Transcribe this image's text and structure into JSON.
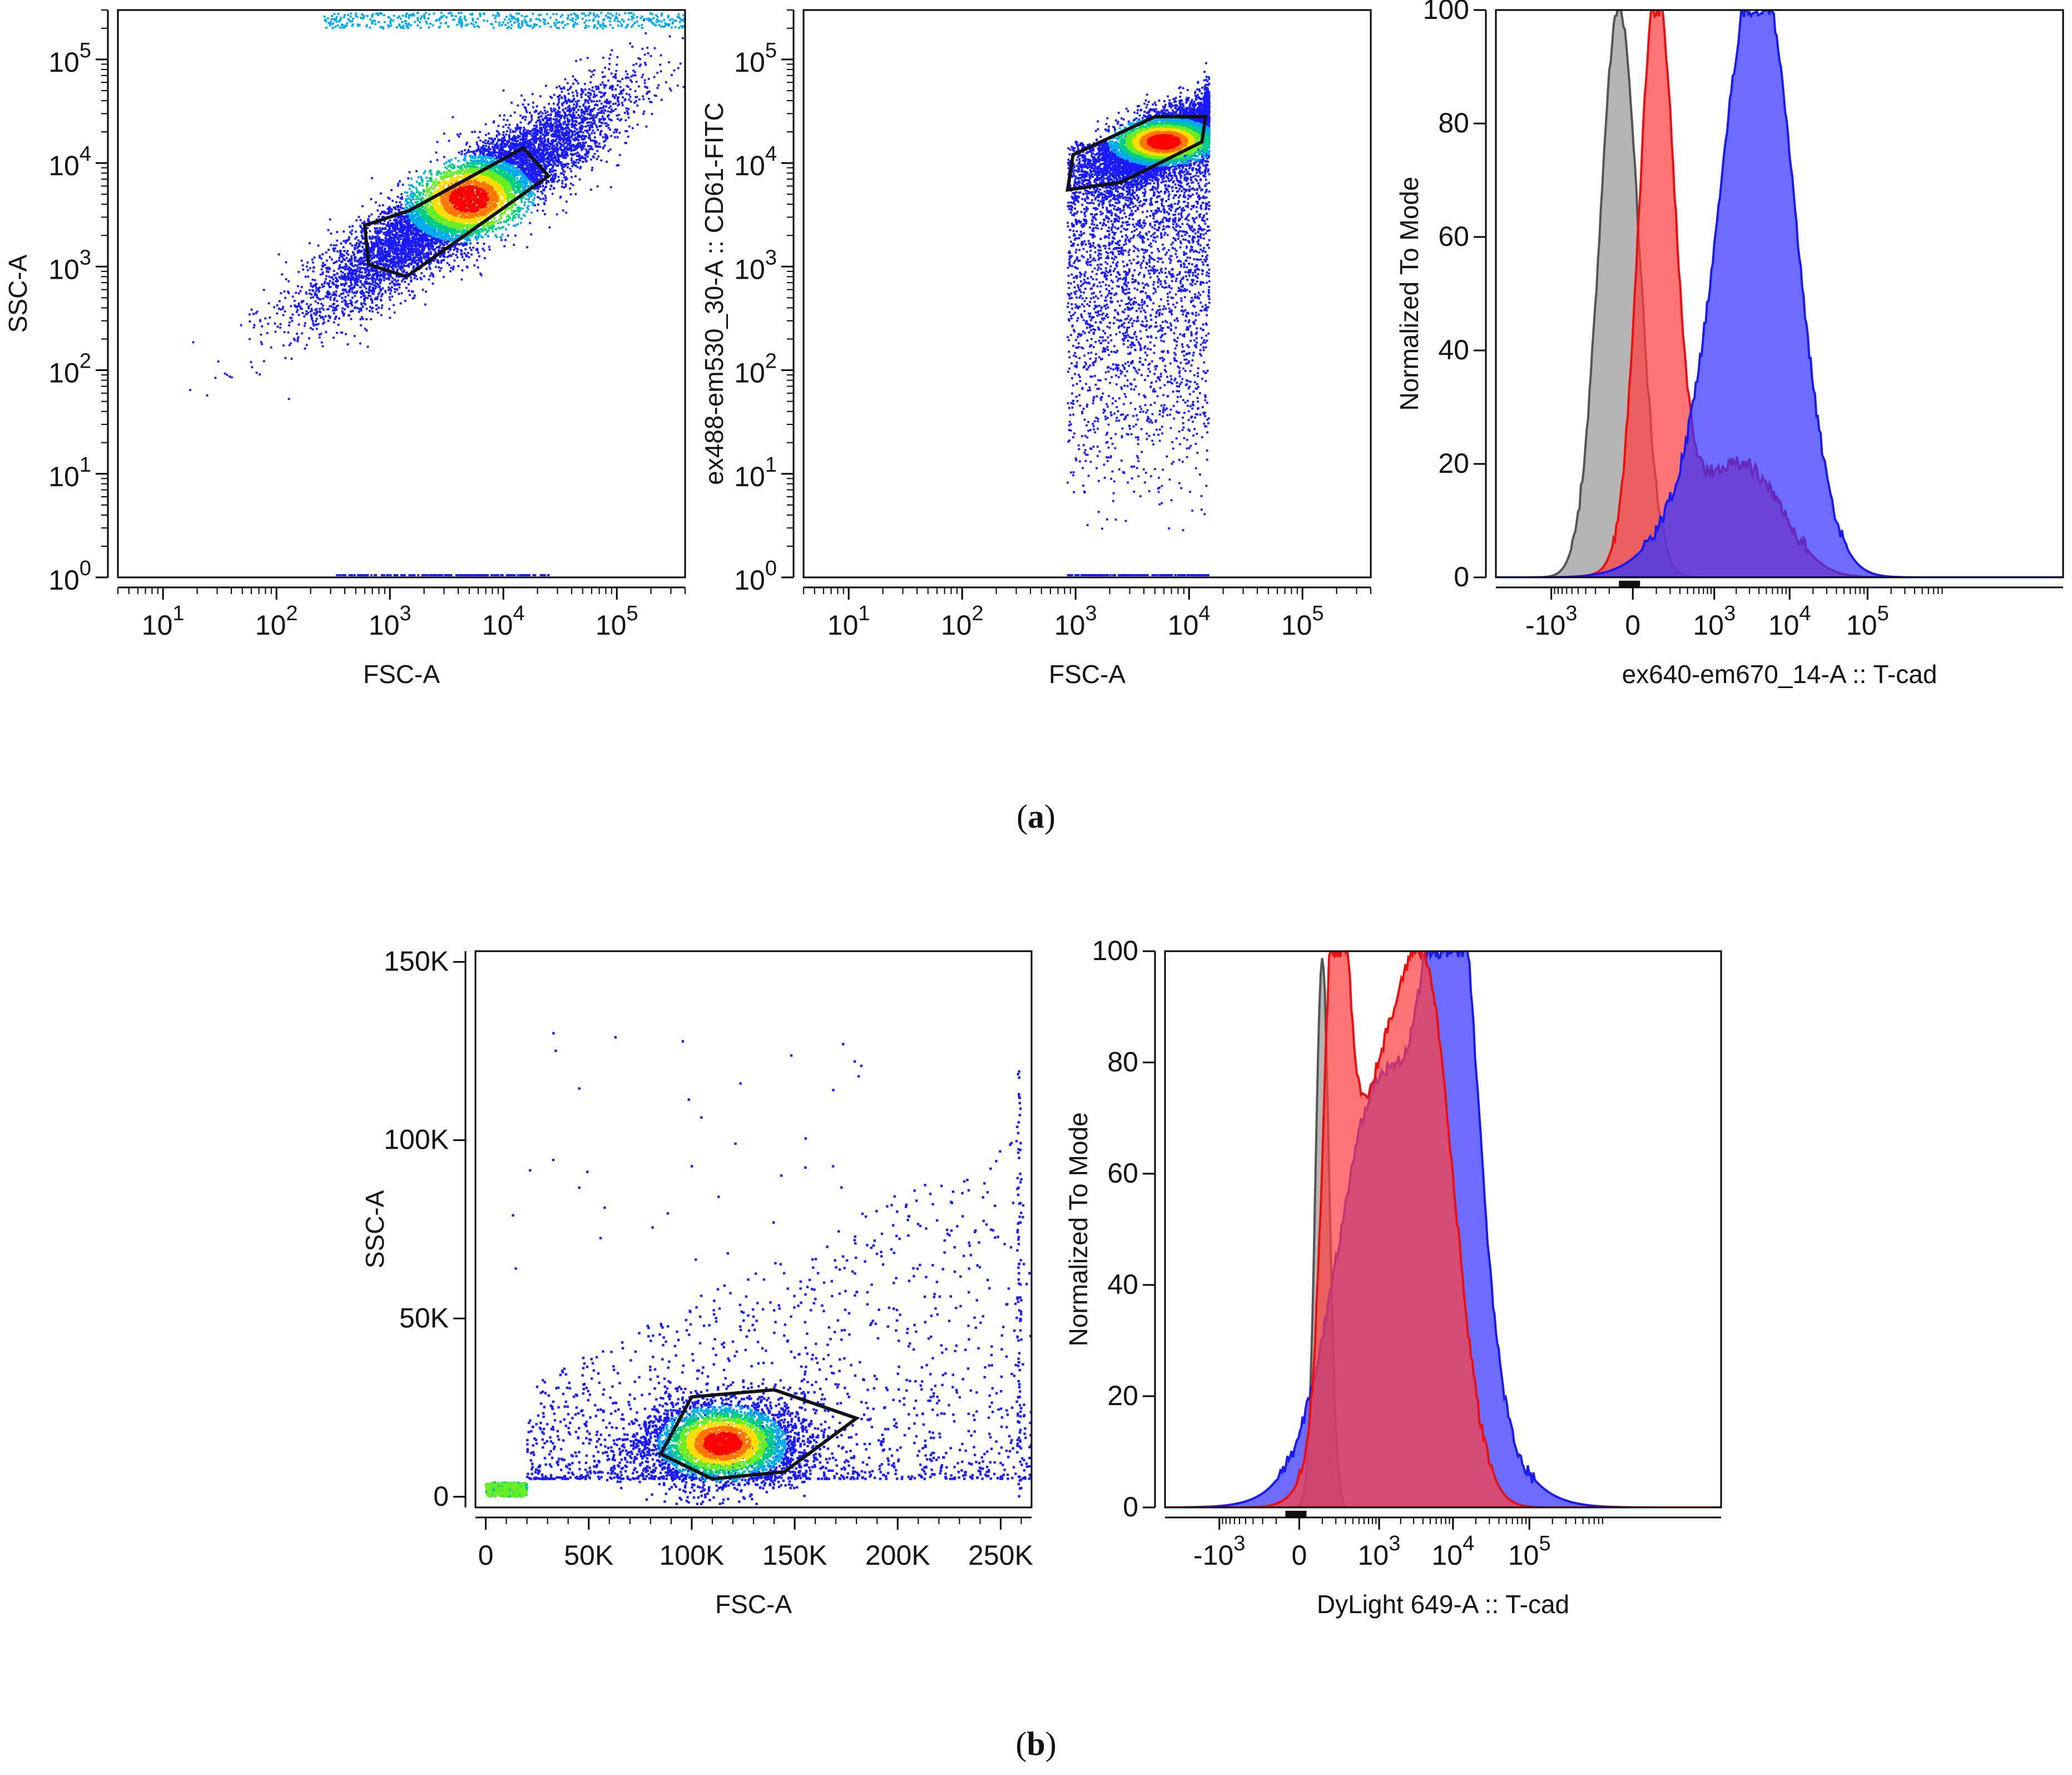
{
  "figure": {
    "panel_a_caption": "(a)",
    "panel_b_caption": "(b)",
    "caption_letter_a": "a",
    "caption_letter_b": "b"
  },
  "chart_data": [
    {
      "id": "a1",
      "type": "scatter",
      "panel": "a",
      "title": "",
      "xlabel": "FSC-A",
      "ylabel": "SSC-A",
      "x_scale": "log",
      "y_scale": "log",
      "xlim": [
        4,
        400000
      ],
      "ylim": [
        1,
        300000
      ],
      "x_ticks": [
        {
          "base": "10",
          "exp": "1",
          "value": 10
        },
        {
          "base": "10",
          "exp": "2",
          "value": 100
        },
        {
          "base": "10",
          "exp": "3",
          "value": 1000
        },
        {
          "base": "10",
          "exp": "4",
          "value": 10000
        },
        {
          "base": "10",
          "exp": "5",
          "value": 100000
        }
      ],
      "y_ticks": [
        {
          "base": "10",
          "exp": "0",
          "value": 1
        },
        {
          "base": "10",
          "exp": "1",
          "value": 10
        },
        {
          "base": "10",
          "exp": "2",
          "value": 100
        },
        {
          "base": "10",
          "exp": "3",
          "value": 1000
        },
        {
          "base": "10",
          "exp": "4",
          "value": 10000
        },
        {
          "base": "10",
          "exp": "5",
          "value": 100000
        }
      ],
      "density_center": {
        "x": 5000,
        "y": 4500
      },
      "gate": [
        [
          600,
          2500
        ],
        [
          650,
          1050
        ],
        [
          1400,
          800
        ],
        [
          25000,
          7500
        ],
        [
          15000,
          14000
        ],
        [
          1500,
          3500
        ]
      ]
    },
    {
      "id": "a2",
      "type": "scatter",
      "panel": "a",
      "title": "",
      "xlabel": "FSC-A",
      "ylabel": "ex488-em530_30-A :: CD61-FITC",
      "x_scale": "log",
      "y_scale": "log",
      "xlim": [
        4,
        400000
      ],
      "ylim": [
        1,
        300000
      ],
      "x_ticks": [
        {
          "base": "10",
          "exp": "1",
          "value": 10
        },
        {
          "base": "10",
          "exp": "2",
          "value": 100
        },
        {
          "base": "10",
          "exp": "3",
          "value": 1000
        },
        {
          "base": "10",
          "exp": "4",
          "value": 10000
        },
        {
          "base": "10",
          "exp": "5",
          "value": 100000
        }
      ],
      "y_ticks": [
        {
          "base": "10",
          "exp": "0",
          "value": 1
        },
        {
          "base": "10",
          "exp": "1",
          "value": 10
        },
        {
          "base": "10",
          "exp": "2",
          "value": 100
        },
        {
          "base": "10",
          "exp": "3",
          "value": 1000
        },
        {
          "base": "10",
          "exp": "4",
          "value": 10000
        },
        {
          "base": "10",
          "exp": "5",
          "value": 100000
        }
      ],
      "density_center": {
        "x": 6000,
        "y": 16000
      },
      "gate": [
        [
          850,
          5500
        ],
        [
          950,
          12000
        ],
        [
          5000,
          28000
        ],
        [
          14000,
          28000
        ],
        [
          13000,
          16000
        ],
        [
          2500,
          6500
        ]
      ]
    },
    {
      "id": "a3",
      "type": "area",
      "panel": "a",
      "title": "",
      "xlabel": "ex640-em670_14-A :: T-cad",
      "ylabel": "Normalized To Mode",
      "x_scale": "biexponential",
      "xlim_t": [
        -0.35,
        1.1
      ],
      "ylim": [
        0,
        100
      ],
      "x_ticks": [
        {
          "base": "-10",
          "exp": "3",
          "value": -1000
        },
        {
          "base": "0",
          "exp": "",
          "value": 0
        },
        {
          "base": "10",
          "exp": "3",
          "value": 1000
        },
        {
          "base": "10",
          "exp": "4",
          "value": 10000
        },
        {
          "base": "10",
          "exp": "5",
          "value": 100000
        }
      ],
      "y_ticks": [
        0,
        20,
        40,
        60,
        80,
        100
      ],
      "series": [
        {
          "name": "gray",
          "color": "#999999",
          "line_color": "#555555",
          "peaks": [
            {
              "mu": -50,
              "sigma": 0.05,
              "amp": 100
            }
          ]
        },
        {
          "name": "red",
          "color": "#ff4040",
          "line_color": "#e81010",
          "peaks": [
            {
              "mu": 100,
              "sigma": 0.045,
              "amp": 98
            },
            {
              "mu": 700,
              "sigma": 0.11,
              "amp": 12
            },
            {
              "mu": 3500,
              "sigma": 0.09,
              "amp": 13
            }
          ]
        },
        {
          "name": "blue",
          "color": "#3333ff",
          "line_color": "#1a1aee",
          "peaks": [
            {
              "mu": 4200,
              "sigma": 0.09,
              "amp": 96
            },
            {
              "mu": 1200,
              "sigma": 0.12,
              "amp": 18
            }
          ]
        }
      ]
    },
    {
      "id": "b1",
      "type": "scatter",
      "panel": "b",
      "title": "",
      "xlabel": "FSC-A",
      "ylabel": "SSC-A",
      "x_scale": "linear",
      "y_scale": "linear",
      "xlim": [
        -5000,
        265000
      ],
      "ylim": [
        -3000,
        153000
      ],
      "x_ticks": [
        {
          "label": "0",
          "value": 0
        },
        {
          "label": "50K",
          "value": 50000
        },
        {
          "label": "100K",
          "value": 100000
        },
        {
          "label": "150K",
          "value": 150000
        },
        {
          "label": "200K",
          "value": 200000
        },
        {
          "label": "250K",
          "value": 250000
        }
      ],
      "y_ticks": [
        {
          "label": "0",
          "value": 0
        },
        {
          "label": "50K",
          "value": 50000
        },
        {
          "label": "100K",
          "value": 100000
        },
        {
          "label": "150K",
          "value": 150000
        }
      ],
      "density_center": {
        "x": 115000,
        "y": 15000
      },
      "gate": [
        [
          85000,
          12000
        ],
        [
          100000,
          28000
        ],
        [
          140000,
          30000
        ],
        [
          180000,
          22000
        ],
        [
          145000,
          7000
        ],
        [
          110000,
          5000
        ]
      ]
    },
    {
      "id": "b2",
      "type": "area",
      "panel": "b",
      "title": "",
      "xlabel": "DyLight 649-A :: T-cad",
      "ylabel": "Normalized To Mode",
      "x_scale": "biexponential",
      "xlim_t": [
        -0.35,
        1.1
      ],
      "ylim": [
        0,
        100
      ],
      "x_ticks": [
        {
          "base": "-10",
          "exp": "3",
          "value": -1000
        },
        {
          "base": "0",
          "exp": "",
          "value": 0
        },
        {
          "base": "10",
          "exp": "3",
          "value": 1000
        },
        {
          "base": "10",
          "exp": "4",
          "value": 10000
        },
        {
          "base": "10",
          "exp": "5",
          "value": 100000
        }
      ],
      "y_ticks": [
        0,
        20,
        40,
        60,
        80,
        100
      ],
      "series": [
        {
          "name": "gray",
          "color": "#999999",
          "line_color": "#555555",
          "peaks": [
            {
              "mu": 100,
              "sigma": 0.018,
              "amp": 98
            }
          ]
        },
        {
          "name": "blue",
          "color": "#3333ff",
          "line_color": "#1a1aee",
          "peaks": [
            {
              "mu": 10000,
              "sigma": 0.06,
              "amp": 85
            },
            {
              "mu": 2500,
              "sigma": 0.15,
              "amp": 55
            },
            {
              "mu": 700,
              "sigma": 0.09,
              "amp": 30
            }
          ]
        },
        {
          "name": "red",
          "color": "#ff4040",
          "line_color": "#e81010",
          "peaks": [
            {
              "mu": 200,
              "sigma": 0.03,
              "amp": 85
            },
            {
              "mu": 700,
              "sigma": 0.08,
              "amp": 62
            },
            {
              "mu": 4500,
              "sigma": 0.075,
              "amp": 88
            }
          ]
        }
      ]
    }
  ]
}
